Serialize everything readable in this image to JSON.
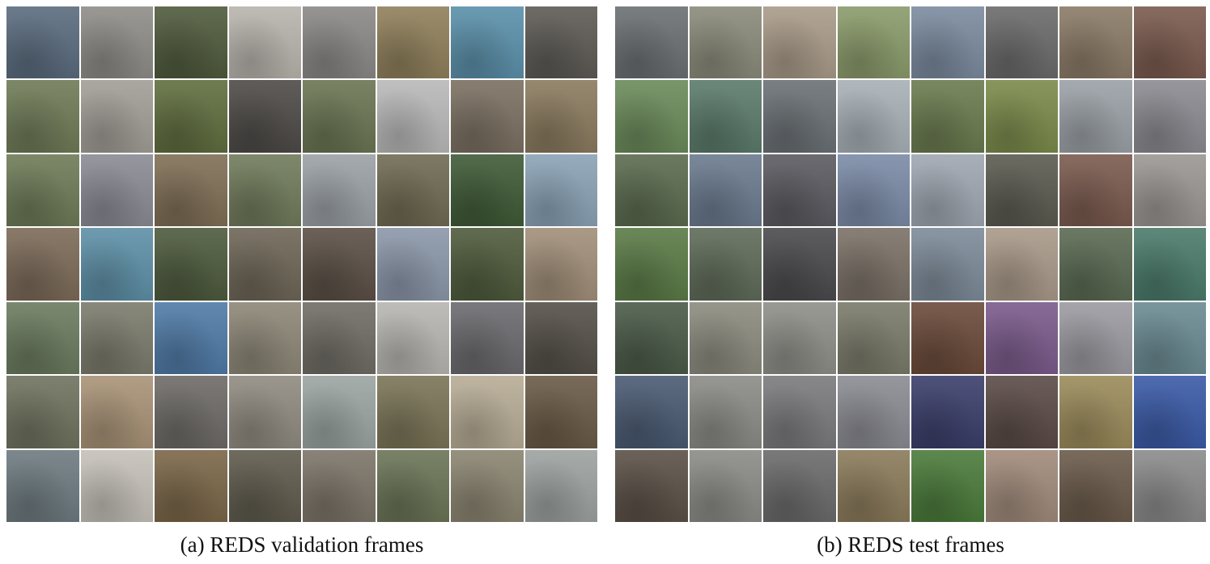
{
  "panels": [
    {
      "caption": "(a)  REDS validation frames",
      "rows": 7,
      "cols": 8,
      "tiles": [
        "#5a6b7e",
        "#8e8c87",
        "#4f5a3c",
        "#b7b3ac",
        "#8a8886",
        "#8f7f5a",
        "#5a8fa9",
        "#5d5a55",
        "#6e7a56",
        "#a19d96",
        "#5f6d3e",
        "#4d4a47",
        "#6a7452",
        "#b8b8b8",
        "#7a6f61",
        "#8a7a5e",
        "#6d7a57",
        "#8a8a94",
        "#7f6e55",
        "#6f7a5a",
        "#9aa0a5",
        "#6f6a52",
        "#3f5a36",
        "#8aa2b5",
        "#7b6a58",
        "#5d8fa6",
        "#4d5a3d",
        "#6d6556",
        "#5a4f45",
        "#8a96a8",
        "#4e5a3b",
        "#a08e78",
        "#6a7a5e",
        "#7a7a6c",
        "#4f7aa6",
        "#8c8676",
        "#6f6c64",
        "#b7b5b0",
        "#6a6a6e",
        "#545048",
        "#6f725e",
        "#a89276",
        "#6d6a66",
        "#8f8a80",
        "#9aa4a0",
        "#7a7456",
        "#b6ab95",
        "#6a5a46",
        "#6d7a80",
        "#c4c0b8",
        "#7a6648",
        "#5e5a4c",
        "#7c7468",
        "#6a7356",
        "#8a8470",
        "#9ca2a0"
      ]
    },
    {
      "caption": "(b)  REDS test frames",
      "rows": 7,
      "cols": 8,
      "tiles": [
        "#6a6f72",
        "#8a8a7a",
        "#a89a88",
        "#8a9a6a",
        "#7a8a9e",
        "#6a6a6a",
        "#8a7a66",
        "#7a5a4e",
        "#6a8a5a",
        "#5a7a6a",
        "#6a7074",
        "#a7b0b6",
        "#6a7a4e",
        "#7a8a4a",
        "#9aa0a6",
        "#8a8a90",
        "#5a6a4e",
        "#6a7a8e",
        "#5a5a60",
        "#7a8aa6",
        "#9ea6b0",
        "#5a5a50",
        "#7a5a4e",
        "#9a9692",
        "#5a7a46",
        "#5e6a58",
        "#4a4a4c",
        "#7a7066",
        "#7c8a98",
        "#a89888",
        "#5a6a52",
        "#4a7a6a",
        "#4a5a48",
        "#8a8a7e",
        "#8e8e88",
        "#7a7a6a",
        "#6a4a3a",
        "#7a5a8a",
        "#9a9aa0",
        "#6a8a92",
        "#4a5a72",
        "#8a8a86",
        "#7a7a7c",
        "#8a8a92",
        "#3a3e6a",
        "#5a4a46",
        "#9a8a5a",
        "#3a5aa6",
        "#5a5046",
        "#8a8a86",
        "#6a6a6a",
        "#8a7a5a",
        "#4a7a3a",
        "#a08a7a",
        "#6a5a4a",
        "#8a8a8a"
      ]
    }
  ]
}
